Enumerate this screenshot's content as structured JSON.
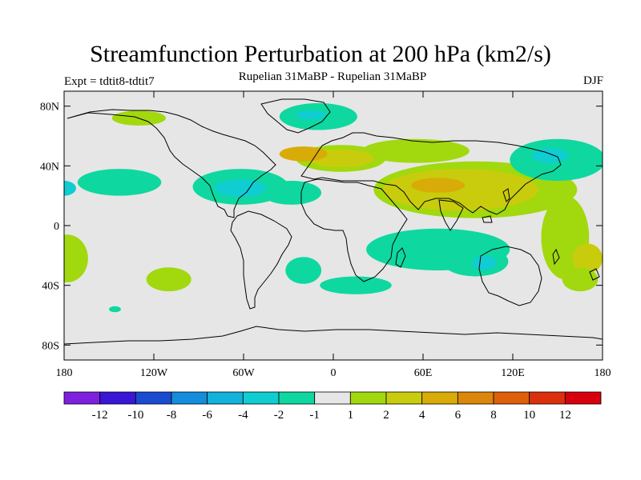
{
  "title": "Streamfunction Perturbation at 200 hPa (km2/s)",
  "subtitle": "Rupelian  31MaBP - Rupelian  31MaBP",
  "left_label": "Expt = tdtit8-tdtit7",
  "right_label": "DJF",
  "chart_data": {
    "type": "heatmap",
    "projection": "cylindrical-equidistant",
    "variable": "streamfunction perturbation",
    "level": "200 hPa",
    "units": "km2/s",
    "season": "DJF",
    "lon_range": [
      -180,
      180
    ],
    "lat_range": [
      -90,
      90
    ],
    "x_ticks": [
      {
        "value": -180,
        "label": "180"
      },
      {
        "value": -120,
        "label": "120W"
      },
      {
        "value": -60,
        "label": "60W"
      },
      {
        "value": 0,
        "label": "0"
      },
      {
        "value": 60,
        "label": "60E"
      },
      {
        "value": 120,
        "label": "120E"
      },
      {
        "value": 180,
        "label": "180"
      }
    ],
    "y_ticks": [
      {
        "value": 80,
        "label": "80N"
      },
      {
        "value": 40,
        "label": "40N"
      },
      {
        "value": 0,
        "label": "0"
      },
      {
        "value": -40,
        "label": "40S"
      },
      {
        "value": -80,
        "label": "80S"
      }
    ],
    "colorbar": {
      "colors": [
        "#7f1fe0",
        "#3a16d6",
        "#1a4bd0",
        "#148ddc",
        "#12b2db",
        "#0fcdd1",
        "#0ed8a0",
        "#e6e6e6",
        "#a2d80e",
        "#c9cc0c",
        "#d9ab08",
        "#dc870a",
        "#de5e0a",
        "#dc300c",
        "#d8000c"
      ],
      "labels": [
        "-12",
        "-10",
        "-8",
        "-6",
        "-4",
        "-2",
        "-1",
        "1",
        "2",
        "4",
        "6",
        "8",
        "10",
        "12"
      ]
    },
    "regions": [
      {
        "lon": 55,
        "lat": 50,
        "rx": 36,
        "ry": 8,
        "color": "#a2d80e"
      },
      {
        "lon": 5,
        "lat": 45,
        "rx": 30,
        "ry": 9,
        "color": "#a2d80e"
      },
      {
        "lon": 5,
        "lat": 45,
        "rx": 22,
        "ry": 6,
        "color": "#c9cc0c"
      },
      {
        "lon": -20,
        "lat": 48,
        "rx": 16,
        "ry": 5,
        "color": "#d9ab08"
      },
      {
        "lon": 95,
        "lat": 24,
        "rx": 68,
        "ry": 19,
        "color": "#a2d80e"
      },
      {
        "lon": 85,
        "lat": 24,
        "rx": 52,
        "ry": 14,
        "color": "#c9cc0c"
      },
      {
        "lon": 70,
        "lat": 27,
        "rx": 18,
        "ry": 5,
        "color": "#d9ab08"
      },
      {
        "lon": 155,
        "lat": -8,
        "rx": 16,
        "ry": 28,
        "color": "#a2d80e"
      },
      {
        "lon": 170,
        "lat": -22,
        "rx": 10,
        "ry": 10,
        "color": "#c9cc0c"
      },
      {
        "lon": 165,
        "lat": -36,
        "rx": 12,
        "ry": 8,
        "color": "#a2d80e"
      },
      {
        "lon": -178,
        "lat": -22,
        "rx": 14,
        "ry": 16,
        "color": "#a2d80e"
      },
      {
        "lon": -110,
        "lat": -36,
        "rx": 15,
        "ry": 8,
        "color": "#a2d80e"
      },
      {
        "lon": -130,
        "lat": 72,
        "rx": 18,
        "ry": 5,
        "color": "#a2d80e"
      },
      {
        "lon": -62,
        "lat": 26,
        "rx": 32,
        "ry": 12,
        "color": "#0ed8a0"
      },
      {
        "lon": -28,
        "lat": 22,
        "rx": 20,
        "ry": 8,
        "color": "#0ed8a0"
      },
      {
        "lon": -62,
        "lat": 25,
        "rx": 17,
        "ry": 6,
        "color": "#0fcdd1"
      },
      {
        "lon": -10,
        "lat": 73,
        "rx": 26,
        "ry": 9,
        "color": "#0ed8a0"
      },
      {
        "lon": -15,
        "lat": 74,
        "rx": 10,
        "ry": 3,
        "color": "#0fcdd1"
      },
      {
        "lon": -143,
        "lat": 29,
        "rx": 28,
        "ry": 9,
        "color": "#0ed8a0"
      },
      {
        "lon": -180,
        "lat": 25,
        "rx": 8,
        "ry": 5,
        "color": "#0fcdd1"
      },
      {
        "lon": 150,
        "lat": 44,
        "rx": 32,
        "ry": 14,
        "color": "#0ed8a0"
      },
      {
        "lon": 145,
        "lat": 47,
        "rx": 12,
        "ry": 5,
        "color": "#0fcdd1"
      },
      {
        "lon": 70,
        "lat": -16,
        "rx": 48,
        "ry": 14,
        "color": "#0ed8a0"
      },
      {
        "lon": 95,
        "lat": -24,
        "rx": 22,
        "ry": 10,
        "color": "#0ed8a0"
      },
      {
        "lon": 101,
        "lat": -25,
        "rx": 8,
        "ry": 5,
        "color": "#0fcdd1"
      },
      {
        "lon": -20,
        "lat": -30,
        "rx": 12,
        "ry": 9,
        "color": "#0ed8a0"
      },
      {
        "lon": 15,
        "lat": -40,
        "rx": 24,
        "ry": 6,
        "color": "#0ed8a0"
      },
      {
        "lon": -146,
        "lat": -56,
        "rx": 4,
        "ry": 2,
        "color": "#0ed8a0"
      }
    ]
  }
}
